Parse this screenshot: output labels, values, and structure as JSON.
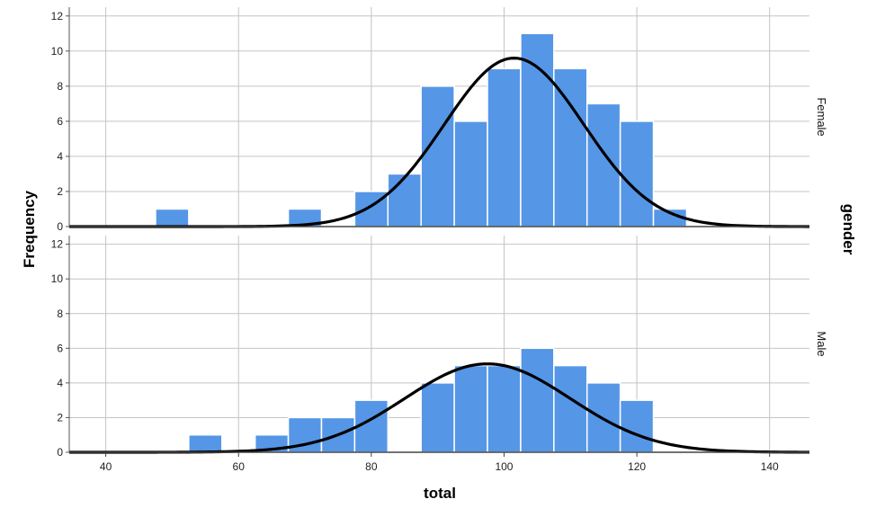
{
  "chart_data": {
    "type": "histogram",
    "xlabel": "total",
    "ylabel": "Frequency",
    "panel_axis_label": "gender",
    "x_ticks": [
      40,
      60,
      80,
      100,
      120,
      140
    ],
    "xlim": [
      34.5,
      146
    ],
    "y_ticks": [
      0,
      2,
      4,
      6,
      8,
      10,
      12
    ],
    "ylim": [
      0,
      12.5
    ],
    "bin_width": 5,
    "bins": [
      50,
      55,
      60,
      65,
      70,
      75,
      80,
      85,
      90,
      95,
      100,
      105,
      110,
      115,
      120,
      125
    ],
    "grid": true,
    "bar_color": "#5596e6",
    "curve_color": "#000000",
    "panels": [
      {
        "label": "Female",
        "counts": [
          1,
          0,
          0,
          0,
          1,
          0,
          2,
          3,
          8,
          6,
          9,
          11,
          9,
          7,
          6,
          1
        ],
        "normal_curve": {
          "mean": 101.5,
          "peak": 9.6
        }
      },
      {
        "label": "Male",
        "counts": [
          0,
          1,
          0,
          1,
          2,
          2,
          3,
          0,
          4,
          5,
          5,
          6,
          5,
          4,
          3,
          0
        ],
        "normal_curve": {
          "mean": 97.5,
          "peak": 5.1
        }
      }
    ]
  }
}
